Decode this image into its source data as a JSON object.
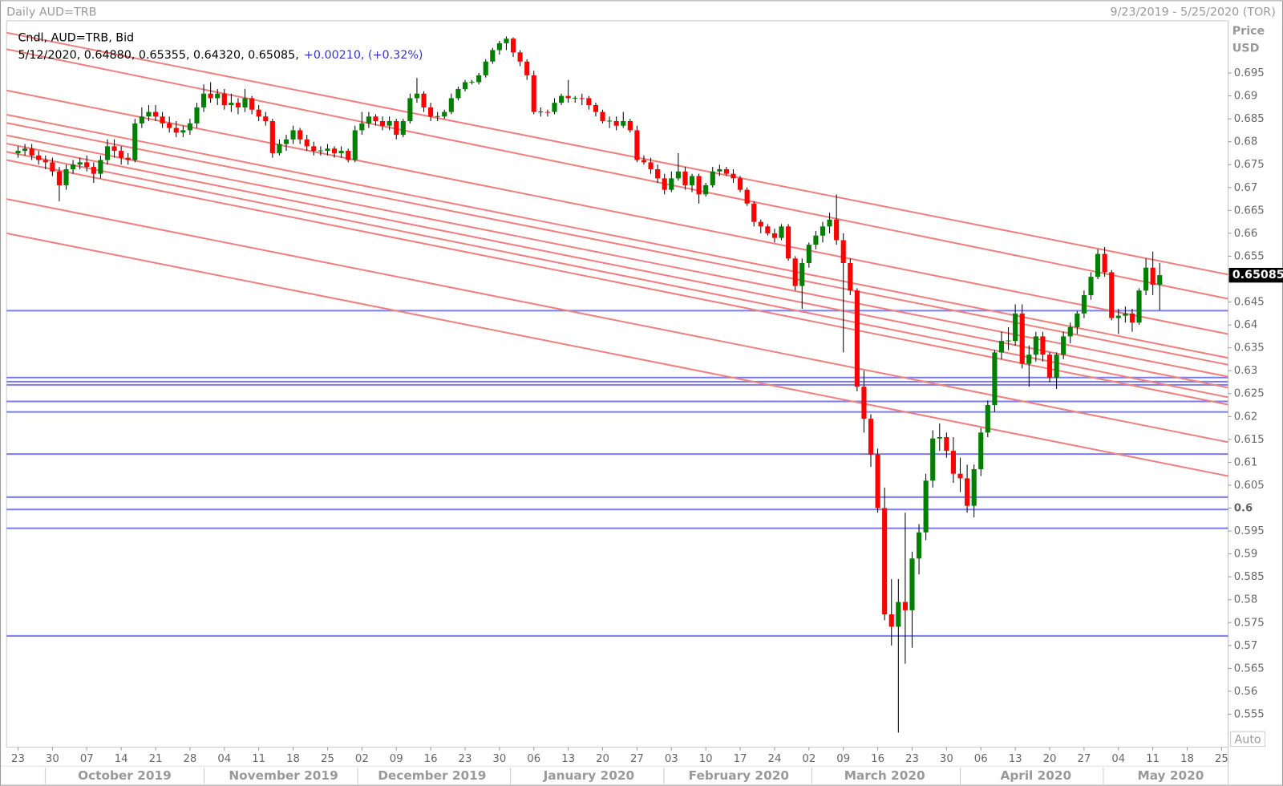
{
  "chart_data": {
    "type": "candlestick",
    "title": "Daily AUD=TRB",
    "date_range": "9/23/2019 - 5/25/2020 (TOR)",
    "axis_label": "Price",
    "axis_unit": "USD",
    "legend": "Cndl, AUD=TRB, Bid",
    "info": "5/12/2020, 0.64880, 0.65355, 0.64320, 0.65085,",
    "change": "+0.00210, (+0.32%)",
    "last_price_label": "0.65085",
    "scale_mode": "Auto",
    "up_color": "#008000",
    "down_color": "#ff0000",
    "hline_color": "#7b7bf0",
    "trendline_color": "#f08080",
    "candles": [
      [
        0.6775,
        0.679,
        0.6765,
        0.678
      ],
      [
        0.678,
        0.6795,
        0.677,
        0.6785
      ],
      [
        0.6785,
        0.6795,
        0.676,
        0.677
      ],
      [
        0.677,
        0.678,
        0.675,
        0.676
      ],
      [
        0.676,
        0.677,
        0.674,
        0.6755
      ],
      [
        0.6755,
        0.6765,
        0.6725,
        0.6735
      ],
      [
        0.6735,
        0.6745,
        0.667,
        0.6705
      ],
      [
        0.6705,
        0.675,
        0.6695,
        0.674
      ],
      [
        0.674,
        0.676,
        0.673,
        0.675
      ],
      [
        0.675,
        0.6765,
        0.674,
        0.6755
      ],
      [
        0.6755,
        0.677,
        0.6735,
        0.6745
      ],
      [
        0.6745,
        0.6755,
        0.671,
        0.673
      ],
      [
        0.673,
        0.677,
        0.672,
        0.676
      ],
      [
        0.676,
        0.6805,
        0.675,
        0.679
      ],
      [
        0.679,
        0.6805,
        0.6765,
        0.678
      ],
      [
        0.678,
        0.679,
        0.675,
        0.6765
      ],
      [
        0.6765,
        0.6775,
        0.675,
        0.676
      ],
      [
        0.676,
        0.685,
        0.6755,
        0.684
      ],
      [
        0.684,
        0.6875,
        0.683,
        0.6855
      ],
      [
        0.6855,
        0.688,
        0.6845,
        0.6865
      ],
      [
        0.6865,
        0.688,
        0.6845,
        0.6855
      ],
      [
        0.6855,
        0.6865,
        0.683,
        0.684
      ],
      [
        0.684,
        0.6855,
        0.682,
        0.683
      ],
      [
        0.683,
        0.6845,
        0.681,
        0.682
      ],
      [
        0.682,
        0.6835,
        0.681,
        0.6825
      ],
      [
        0.6825,
        0.685,
        0.6815,
        0.684
      ],
      [
        0.684,
        0.6885,
        0.683,
        0.6875
      ],
      [
        0.6875,
        0.6925,
        0.6865,
        0.6905
      ],
      [
        0.6905,
        0.693,
        0.6885,
        0.6895
      ],
      [
        0.6895,
        0.6915,
        0.688,
        0.6905
      ],
      [
        0.6905,
        0.6915,
        0.687,
        0.688
      ],
      [
        0.688,
        0.6905,
        0.6865,
        0.6885
      ],
      [
        0.6885,
        0.6895,
        0.686,
        0.6875
      ],
      [
        0.6875,
        0.6915,
        0.6865,
        0.6895
      ],
      [
        0.6895,
        0.69,
        0.686,
        0.687
      ],
      [
        0.687,
        0.688,
        0.6845,
        0.6855
      ],
      [
        0.6855,
        0.6865,
        0.6835,
        0.6845
      ],
      [
        0.6845,
        0.685,
        0.6765,
        0.6775
      ],
      [
        0.6775,
        0.6805,
        0.677,
        0.6795
      ],
      [
        0.6795,
        0.6815,
        0.678,
        0.6805
      ],
      [
        0.6805,
        0.6835,
        0.6795,
        0.6825
      ],
      [
        0.6825,
        0.683,
        0.6795,
        0.6805
      ],
      [
        0.6805,
        0.6815,
        0.678,
        0.679
      ],
      [
        0.679,
        0.68,
        0.677,
        0.678
      ],
      [
        0.678,
        0.679,
        0.677,
        0.6781
      ],
      [
        0.678,
        0.6795,
        0.677,
        0.6785
      ],
      [
        0.6785,
        0.679,
        0.6765,
        0.6775
      ],
      [
        0.6775,
        0.679,
        0.6765,
        0.678
      ],
      [
        0.678,
        0.6785,
        0.6755,
        0.676
      ],
      [
        0.676,
        0.6835,
        0.6755,
        0.6825
      ],
      [
        0.6825,
        0.6865,
        0.6815,
        0.684
      ],
      [
        0.684,
        0.6865,
        0.683,
        0.6855
      ],
      [
        0.6855,
        0.686,
        0.6835,
        0.6845
      ],
      [
        0.6845,
        0.6855,
        0.6825,
        0.6835
      ],
      [
        0.6835,
        0.6855,
        0.6825,
        0.6845
      ],
      [
        0.6845,
        0.685,
        0.6805,
        0.6815
      ],
      [
        0.6815,
        0.685,
        0.681,
        0.6845
      ],
      [
        0.6845,
        0.6905,
        0.684,
        0.6895
      ],
      [
        0.6895,
        0.6939,
        0.6885,
        0.6905
      ],
      [
        0.6905,
        0.691,
        0.6865,
        0.6875
      ],
      [
        0.6875,
        0.6885,
        0.6845,
        0.6855
      ],
      [
        0.6855,
        0.6865,
        0.6845,
        0.6856
      ],
      [
        0.6855,
        0.687,
        0.685,
        0.6865
      ],
      [
        0.6865,
        0.6905,
        0.686,
        0.6895
      ],
      [
        0.6895,
        0.692,
        0.689,
        0.6915
      ],
      [
        0.6915,
        0.6935,
        0.691,
        0.693
      ],
      [
        0.693,
        0.6935,
        0.6925,
        0.6931
      ],
      [
        0.693,
        0.695,
        0.6925,
        0.6945
      ],
      [
        0.6945,
        0.698,
        0.694,
        0.6975
      ],
      [
        0.6975,
        0.7005,
        0.697,
        0.7
      ],
      [
        0.7,
        0.702,
        0.699,
        0.7015
      ],
      [
        0.7015,
        0.703,
        0.7,
        0.7025
      ],
      [
        0.7025,
        0.7028,
        0.6985,
        0.6995
      ],
      [
        0.6995,
        0.7,
        0.6965,
        0.6975
      ],
      [
        0.6975,
        0.698,
        0.6935,
        0.6945
      ],
      [
        0.6945,
        0.6955,
        0.686,
        0.6865
      ],
      [
        0.6865,
        0.6875,
        0.6855,
        0.6866
      ],
      [
        0.6865,
        0.687,
        0.6855,
        0.6864
      ],
      [
        0.6865,
        0.6895,
        0.686,
        0.6885
      ],
      [
        0.6885,
        0.6905,
        0.688,
        0.69
      ],
      [
        0.69,
        0.6935,
        0.6885,
        0.6895
      ],
      [
        0.6895,
        0.69,
        0.6885,
        0.6896
      ],
      [
        0.6895,
        0.6905,
        0.688,
        0.6894
      ],
      [
        0.6895,
        0.69,
        0.687,
        0.688
      ],
      [
        0.688,
        0.6885,
        0.6855,
        0.6865
      ],
      [
        0.6865,
        0.687,
        0.684,
        0.6845
      ],
      [
        0.6845,
        0.6855,
        0.683,
        0.6846
      ],
      [
        0.6845,
        0.6855,
        0.6825,
        0.6835
      ],
      [
        0.6835,
        0.6865,
        0.683,
        0.6845
      ],
      [
        0.6845,
        0.685,
        0.682,
        0.6825
      ],
      [
        0.6825,
        0.6835,
        0.6755,
        0.676
      ],
      [
        0.676,
        0.677,
        0.675,
        0.6755
      ],
      [
        0.6755,
        0.6765,
        0.673,
        0.674
      ],
      [
        0.674,
        0.675,
        0.671,
        0.672
      ],
      [
        0.672,
        0.673,
        0.6685,
        0.6695
      ],
      [
        0.6695,
        0.6735,
        0.669,
        0.672
      ],
      [
        0.672,
        0.6775,
        0.6715,
        0.6735
      ],
      [
        0.6735,
        0.6745,
        0.6695,
        0.6705
      ],
      [
        0.6705,
        0.673,
        0.669,
        0.6725
      ],
      [
        0.6725,
        0.673,
        0.6665,
        0.6685
      ],
      [
        0.6685,
        0.671,
        0.668,
        0.6705
      ],
      [
        0.6705,
        0.6745,
        0.67,
        0.6735
      ],
      [
        0.6735,
        0.675,
        0.6725,
        0.674
      ],
      [
        0.674,
        0.6745,
        0.6725,
        0.673
      ],
      [
        0.673,
        0.674,
        0.671,
        0.672
      ],
      [
        0.672,
        0.6725,
        0.669,
        0.6695
      ],
      [
        0.6695,
        0.67,
        0.666,
        0.6665
      ],
      [
        0.6665,
        0.667,
        0.6615,
        0.6625
      ],
      [
        0.6625,
        0.663,
        0.66,
        0.6615
      ],
      [
        0.6615,
        0.662,
        0.6595,
        0.66
      ],
      [
        0.66,
        0.661,
        0.658,
        0.659
      ],
      [
        0.659,
        0.662,
        0.6585,
        0.6615
      ],
      [
        0.6615,
        0.662,
        0.654,
        0.6545
      ],
      [
        0.6545,
        0.655,
        0.6475,
        0.6485
      ],
      [
        0.6485,
        0.6545,
        0.6435,
        0.6535
      ],
      [
        0.6535,
        0.658,
        0.6525,
        0.6575
      ],
      [
        0.6575,
        0.6605,
        0.6565,
        0.6595
      ],
      [
        0.6595,
        0.6625,
        0.658,
        0.6615
      ],
      [
        0.6615,
        0.6645,
        0.66,
        0.663
      ],
      [
        0.663,
        0.6685,
        0.6575,
        0.6585
      ],
      [
        0.6585,
        0.66,
        0.634,
        0.6535
      ],
      [
        0.6535,
        0.6545,
        0.6465,
        0.6475
      ],
      [
        0.6475,
        0.648,
        0.6255,
        0.6265
      ],
      [
        0.6265,
        0.63,
        0.6165,
        0.6195
      ],
      [
        0.6195,
        0.6205,
        0.609,
        0.6117
      ],
      [
        0.6117,
        0.613,
        0.599,
        0.6
      ],
      [
        0.6,
        0.6045,
        0.5755,
        0.5768
      ],
      [
        0.5768,
        0.5845,
        0.57,
        0.5741
      ],
      [
        0.5741,
        0.5845,
        0.551,
        0.5795
      ],
      [
        0.5795,
        0.599,
        0.566,
        0.5777
      ],
      [
        0.5777,
        0.5905,
        0.5695,
        0.589
      ],
      [
        0.589,
        0.5965,
        0.5855,
        0.5947
      ],
      [
        0.5947,
        0.6075,
        0.593,
        0.606
      ],
      [
        0.606,
        0.617,
        0.6045,
        0.6152
      ],
      [
        0.6152,
        0.6185,
        0.6125,
        0.6155
      ],
      [
        0.6155,
        0.6165,
        0.611,
        0.6125
      ],
      [
        0.6125,
        0.6155,
        0.6055,
        0.6075
      ],
      [
        0.6075,
        0.611,
        0.6035,
        0.6065
      ],
      [
        0.6065,
        0.6095,
        0.599,
        0.6005
      ],
      [
        0.6005,
        0.6095,
        0.598,
        0.6085
      ],
      [
        0.6085,
        0.6175,
        0.607,
        0.6165
      ],
      [
        0.6165,
        0.6235,
        0.6155,
        0.6225
      ],
      [
        0.6225,
        0.6345,
        0.621,
        0.634
      ],
      [
        0.634,
        0.6385,
        0.6325,
        0.6365
      ],
      [
        0.6365,
        0.6395,
        0.6345,
        0.6366
      ],
      [
        0.6365,
        0.6445,
        0.6355,
        0.6425
      ],
      [
        0.6425,
        0.6445,
        0.6305,
        0.6315
      ],
      [
        0.6315,
        0.6355,
        0.6265,
        0.6335
      ],
      [
        0.6335,
        0.6385,
        0.632,
        0.6375
      ],
      [
        0.6375,
        0.6385,
        0.632,
        0.6335
      ],
      [
        0.6335,
        0.634,
        0.6275,
        0.6285
      ],
      [
        0.6285,
        0.634,
        0.626,
        0.6335
      ],
      [
        0.6335,
        0.6385,
        0.6325,
        0.6375
      ],
      [
        0.6375,
        0.6405,
        0.636,
        0.6395
      ],
      [
        0.6395,
        0.643,
        0.638,
        0.6425
      ],
      [
        0.6425,
        0.6475,
        0.6415,
        0.6465
      ],
      [
        0.6465,
        0.6515,
        0.6455,
        0.6505
      ],
      [
        0.6505,
        0.6565,
        0.65,
        0.6555
      ],
      [
        0.6555,
        0.657,
        0.6505,
        0.6515
      ],
      [
        0.6515,
        0.652,
        0.641,
        0.6415
      ],
      [
        0.6415,
        0.6435,
        0.638,
        0.642
      ],
      [
        0.642,
        0.644,
        0.6405,
        0.6425
      ],
      [
        0.6425,
        0.6435,
        0.6385,
        0.6405
      ],
      [
        0.6405,
        0.648,
        0.64,
        0.6475
      ],
      [
        0.6475,
        0.6545,
        0.6465,
        0.6525
      ],
      [
        0.6525,
        0.656,
        0.6465,
        0.6488
      ],
      [
        0.6488,
        0.65355,
        0.6432,
        0.65085
      ]
    ],
    "xlim": [
      -1.67,
      175.95
    ],
    "xticks": [
      {
        "value": 0,
        "label": "23"
      },
      {
        "value": 5,
        "label": "30"
      },
      {
        "value": 10,
        "label": "07"
      },
      {
        "value": 15,
        "label": "14"
      },
      {
        "value": 20,
        "label": "21"
      },
      {
        "value": 25,
        "label": "28"
      },
      {
        "value": 30,
        "label": "04"
      },
      {
        "value": 35,
        "label": "11"
      },
      {
        "value": 40,
        "label": "18"
      },
      {
        "value": 45,
        "label": "25"
      },
      {
        "value": 50,
        "label": "02"
      },
      {
        "value": 55,
        "label": "09"
      },
      {
        "value": 60,
        "label": "16"
      },
      {
        "value": 65,
        "label": "23"
      },
      {
        "value": 70,
        "label": "30"
      },
      {
        "value": 75,
        "label": "06"
      },
      {
        "value": 80,
        "label": "13"
      },
      {
        "value": 85,
        "label": "20"
      },
      {
        "value": 90,
        "label": "27"
      },
      {
        "value": 95,
        "label": "03"
      },
      {
        "value": 100,
        "label": "10"
      },
      {
        "value": 105,
        "label": "17"
      },
      {
        "value": 110,
        "label": "24"
      },
      {
        "value": 115,
        "label": "02"
      },
      {
        "value": 120,
        "label": "09"
      },
      {
        "value": 125,
        "label": "16"
      },
      {
        "value": 130,
        "label": "23"
      },
      {
        "value": 135,
        "label": "30"
      },
      {
        "value": 140,
        "label": "06"
      },
      {
        "value": 145,
        "label": "13"
      },
      {
        "value": 150,
        "label": "20"
      },
      {
        "value": 155,
        "label": "27"
      },
      {
        "value": 160,
        "label": "04"
      },
      {
        "value": 165,
        "label": "11"
      },
      {
        "value": 170,
        "label": "18"
      },
      {
        "value": 175,
        "label": "25"
      }
    ],
    "months": [
      {
        "value": 15.5,
        "label": "October 2019"
      },
      {
        "value": 38.6,
        "label": "November 2019"
      },
      {
        "value": 60.2,
        "label": "December 2019"
      },
      {
        "value": 83,
        "label": "January 2020"
      },
      {
        "value": 104.8,
        "label": "February 2020"
      },
      {
        "value": 126,
        "label": "March 2020"
      },
      {
        "value": 148,
        "label": "April 2020"
      },
      {
        "value": 167.6,
        "label": "May 2020"
      }
    ],
    "ylim": [
      0.5478,
      0.7064
    ],
    "yticks": [
      0.555,
      0.56,
      0.565,
      0.57,
      0.575,
      0.58,
      0.585,
      0.59,
      0.595,
      0.6,
      0.605,
      0.61,
      0.615,
      0.62,
      0.625,
      0.63,
      0.635,
      0.64,
      0.645,
      0.65,
      0.655,
      0.66,
      0.665,
      0.67,
      0.675,
      0.68,
      0.685,
      0.69,
      0.695
    ],
    "hlines": [
      0.6431,
      0.6285,
      0.6276,
      0.6269,
      0.6233,
      0.621,
      0.6118,
      0.6024,
      0.5997,
      0.5956,
      0.5721
    ],
    "trendlines": [
      {
        "start": 0.7038,
        "end": 0.651
      },
      {
        "start": 0.7002,
        "end": 0.6457
      },
      {
        "start": 0.6912,
        "end": 0.638
      },
      {
        "start": 0.6859,
        "end": 0.6328
      },
      {
        "start": 0.6841,
        "end": 0.6313
      },
      {
        "start": 0.6814,
        "end": 0.6287
      },
      {
        "start": 0.6796,
        "end": 0.6263
      },
      {
        "start": 0.6778,
        "end": 0.6242
      },
      {
        "start": 0.676,
        "end": 0.6226
      },
      {
        "start": 0.6675,
        "end": 0.6144
      },
      {
        "start": 0.66,
        "end": 0.607
      }
    ]
  }
}
